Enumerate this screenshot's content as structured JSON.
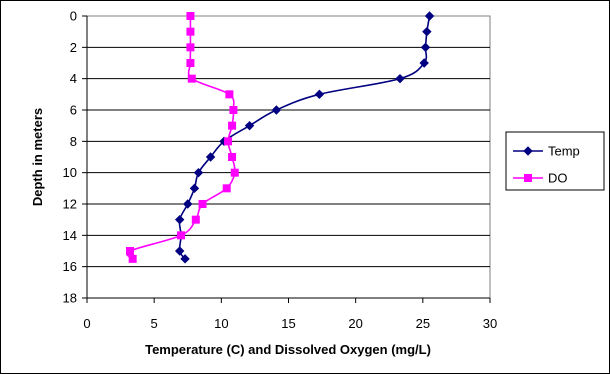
{
  "chart_data": {
    "type": "line",
    "xlabel": "Temperature (C) and Dissolved Oxygen (mg/L)",
    "ylabel": "Depth in meters",
    "xlim": [
      0,
      30
    ],
    "ylim": [
      0,
      18
    ],
    "y_axis_inverted": true,
    "x_ticks": [
      0,
      5,
      10,
      15,
      20,
      25,
      30
    ],
    "y_ticks": [
      0,
      2,
      4,
      6,
      8,
      10,
      12,
      14,
      16,
      18
    ],
    "grid": "horizontal",
    "legend_position": "right",
    "series": [
      {
        "name": "Temp",
        "color": "#000080",
        "marker": "diamond",
        "points": [
          {
            "x": 25.5,
            "y": 0
          },
          {
            "x": 25.3,
            "y": 1
          },
          {
            "x": 25.2,
            "y": 2
          },
          {
            "x": 25.1,
            "y": 3
          },
          {
            "x": 23.3,
            "y": 4
          },
          {
            "x": 17.3,
            "y": 5
          },
          {
            "x": 14.1,
            "y": 6
          },
          {
            "x": 12.1,
            "y": 7
          },
          {
            "x": 10.2,
            "y": 8
          },
          {
            "x": 9.2,
            "y": 9
          },
          {
            "x": 8.3,
            "y": 10
          },
          {
            "x": 8.0,
            "y": 11
          },
          {
            "x": 7.5,
            "y": 12
          },
          {
            "x": 6.9,
            "y": 13
          },
          {
            "x": 7.0,
            "y": 14
          },
          {
            "x": 6.9,
            "y": 15
          },
          {
            "x": 7.3,
            "y": 15.5
          }
        ]
      },
      {
        "name": "DO",
        "color": "#ff00ff",
        "marker": "square",
        "points": [
          {
            "x": 7.7,
            "y": 0
          },
          {
            "x": 7.7,
            "y": 1
          },
          {
            "x": 7.7,
            "y": 2
          },
          {
            "x": 7.7,
            "y": 3
          },
          {
            "x": 7.8,
            "y": 4
          },
          {
            "x": 10.6,
            "y": 5
          },
          {
            "x": 10.9,
            "y": 6
          },
          {
            "x": 10.8,
            "y": 7
          },
          {
            "x": 10.5,
            "y": 8
          },
          {
            "x": 10.8,
            "y": 9
          },
          {
            "x": 11.0,
            "y": 10
          },
          {
            "x": 10.4,
            "y": 11
          },
          {
            "x": 8.6,
            "y": 12
          },
          {
            "x": 8.1,
            "y": 13
          },
          {
            "x": 7.0,
            "y": 14
          },
          {
            "x": 3.2,
            "y": 15
          },
          {
            "x": 3.4,
            "y": 15.5
          }
        ]
      }
    ]
  }
}
